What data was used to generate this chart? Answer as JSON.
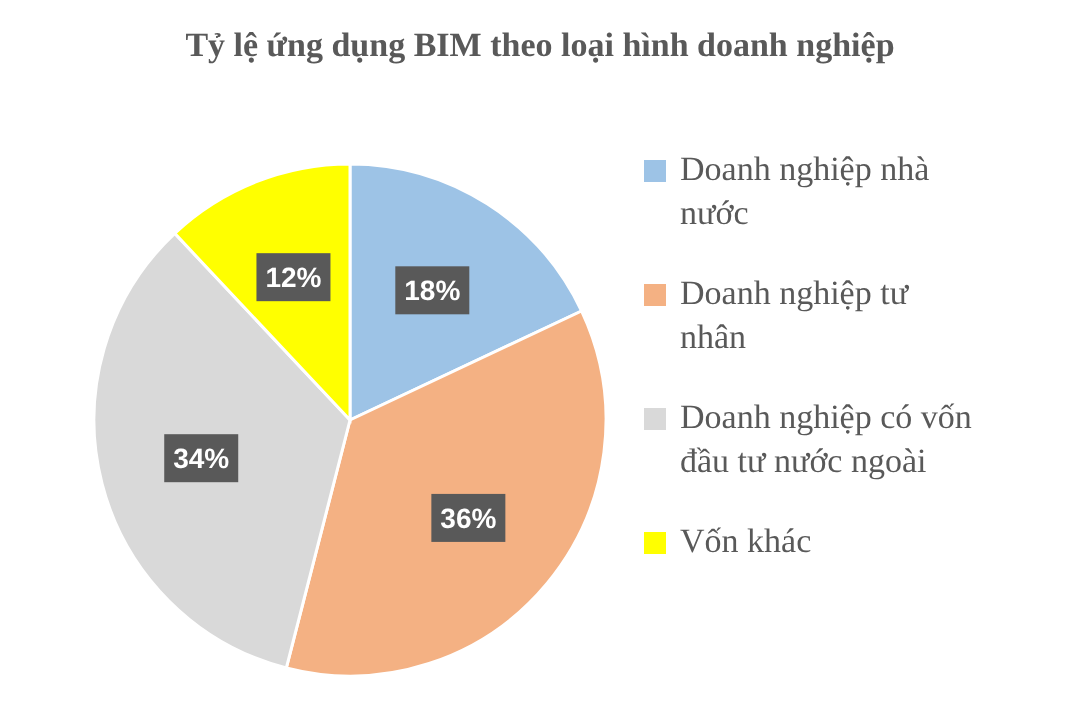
{
  "chart_data": {
    "type": "pie",
    "title": "Tỷ lệ ứng dụng BIM theo loại hình doanh nghiệp",
    "categories": [
      "Doanh nghiệp nhà nước",
      "Doanh nghiệp tư nhân",
      "Doanh nghiệp có vốn đầu tư nước ngoài",
      "Vốn khác"
    ],
    "values": [
      18,
      36,
      34,
      12
    ],
    "colors": [
      "#9dc3e6",
      "#f4b183",
      "#d9d9d9",
      "#ffff00"
    ],
    "value_labels": [
      "18%",
      "36%",
      "34%",
      "12%"
    ],
    "legend": "right"
  }
}
